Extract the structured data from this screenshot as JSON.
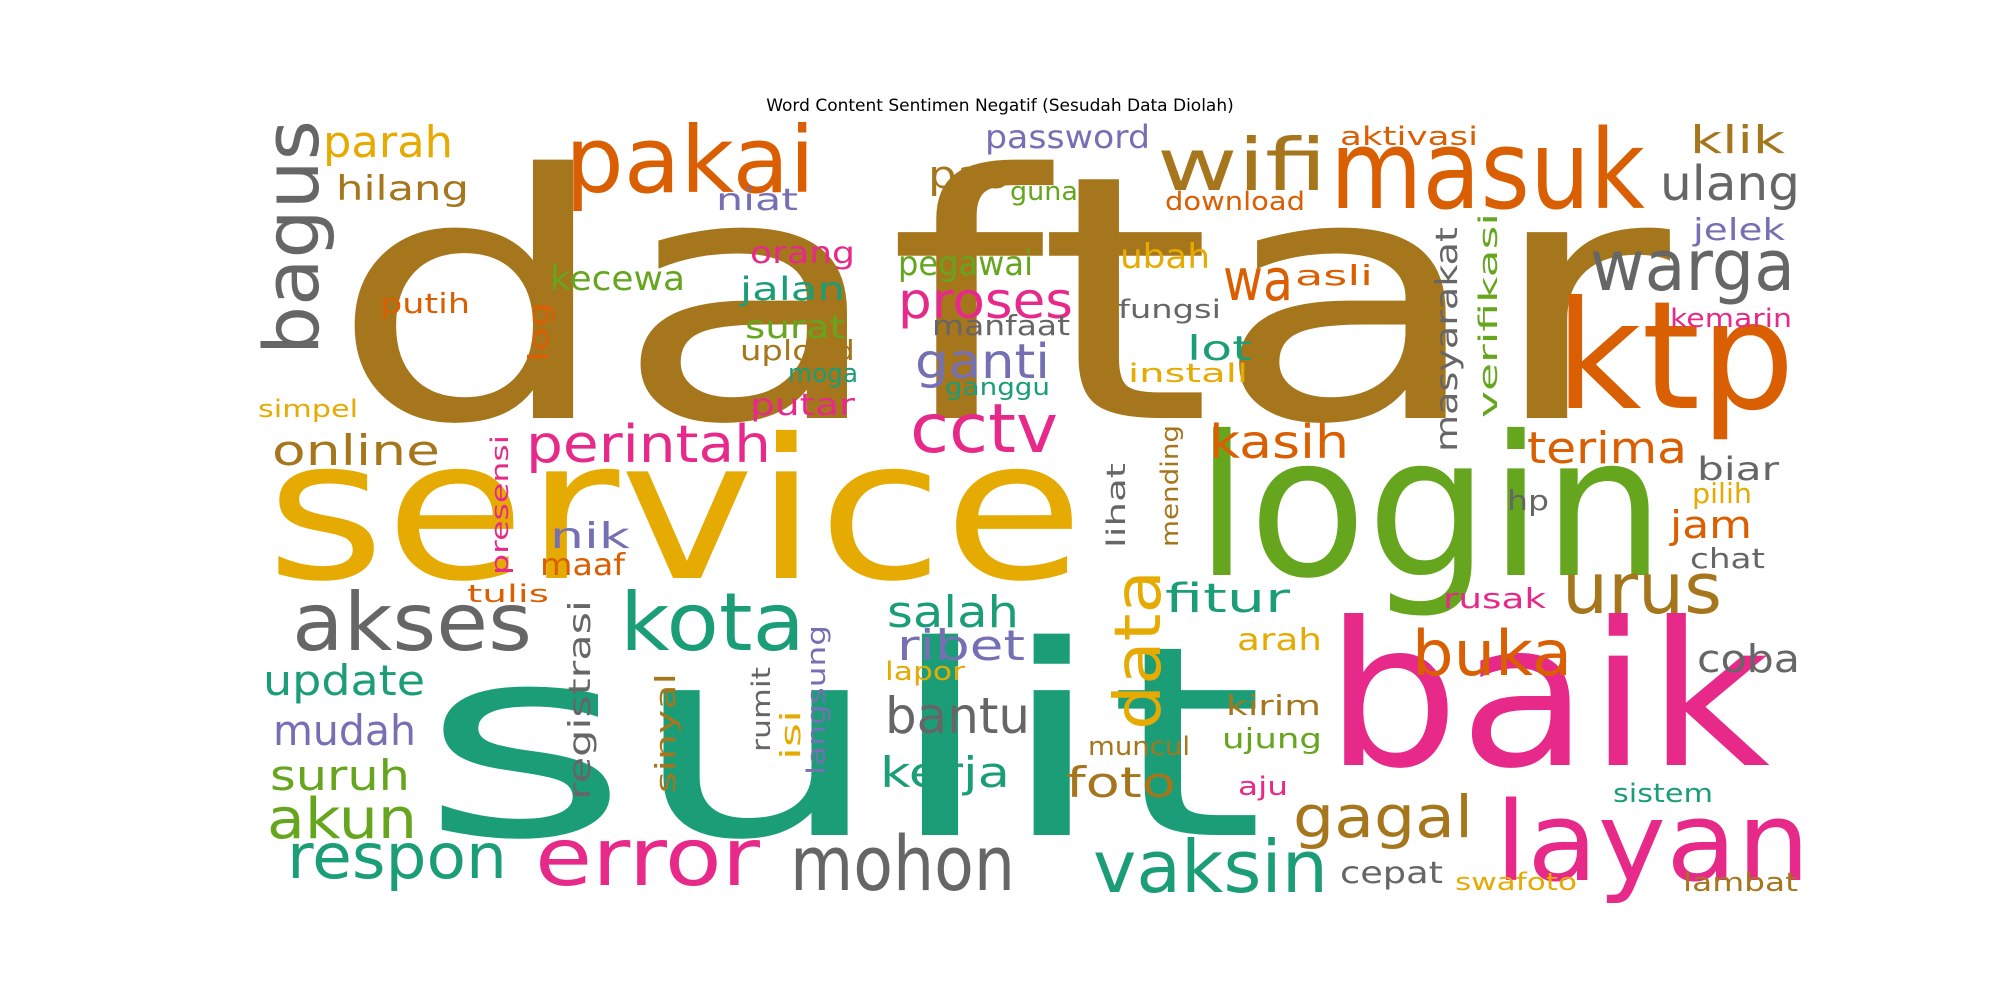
{
  "title": "Word Content Sentimen Negatif (Sesudah Data Diolah)",
  "palette": {
    "brown": "#a6761d",
    "orange": "#d95f02",
    "gold": "#e6ab02",
    "green": "#66a61e",
    "teal": "#1b9e77",
    "pink": "#e7298a",
    "purple": "#7570b3",
    "gray": "#666666"
  },
  "words": [
    {
      "text": "daftar",
      "color": "brown"
    },
    {
      "text": "service",
      "color": "gold"
    },
    {
      "text": "sulit",
      "color": "teal"
    },
    {
      "text": "login",
      "color": "green"
    },
    {
      "text": "baik",
      "color": "pink"
    },
    {
      "text": "ktp",
      "color": "orange"
    },
    {
      "text": "masuk",
      "color": "orange"
    },
    {
      "text": "layan",
      "color": "pink"
    },
    {
      "text": "pakai",
      "color": "orange"
    },
    {
      "text": "kota",
      "color": "teal"
    },
    {
      "text": "akses",
      "color": "gray"
    },
    {
      "text": "bagus",
      "color": "gray"
    },
    {
      "text": "warga",
      "color": "gray"
    },
    {
      "text": "wifi",
      "color": "brown"
    },
    {
      "text": "error",
      "color": "pink"
    },
    {
      "text": "mohon",
      "color": "gray"
    },
    {
      "text": "vaksin",
      "color": "teal"
    },
    {
      "text": "cctv",
      "color": "pink"
    },
    {
      "text": "urus",
      "color": "brown"
    },
    {
      "text": "data",
      "color": "gold"
    },
    {
      "text": "buka",
      "color": "orange"
    },
    {
      "text": "respon",
      "color": "teal"
    },
    {
      "text": "gagal",
      "color": "brown"
    },
    {
      "text": "akun",
      "color": "green"
    },
    {
      "text": "perintah",
      "color": "pink"
    },
    {
      "text": "proses",
      "color": "pink"
    },
    {
      "text": "wa",
      "color": "orange"
    },
    {
      "text": "bantu",
      "color": "gray"
    },
    {
      "text": "ulang",
      "color": "gray"
    },
    {
      "text": "parah",
      "color": "gold"
    },
    {
      "text": "ganti",
      "color": "purple"
    },
    {
      "text": "salah",
      "color": "teal"
    },
    {
      "text": "terima",
      "color": "orange"
    },
    {
      "text": "kasih",
      "color": "orange"
    },
    {
      "text": "online",
      "color": "brown"
    },
    {
      "text": "update",
      "color": "teal"
    },
    {
      "text": "mudah",
      "color": "purple"
    },
    {
      "text": "suruh",
      "color": "green"
    },
    {
      "text": "ribet",
      "color": "purple"
    },
    {
      "text": "kerja",
      "color": "teal"
    },
    {
      "text": "foto",
      "color": "brown"
    },
    {
      "text": "fitur",
      "color": "teal"
    },
    {
      "text": "klik",
      "color": "brown"
    },
    {
      "text": "coba",
      "color": "gray"
    },
    {
      "text": "jam",
      "color": "orange"
    },
    {
      "text": "hilang",
      "color": "brown"
    },
    {
      "text": "pas",
      "color": "brown"
    },
    {
      "text": "password",
      "color": "purple"
    },
    {
      "text": "pegawai",
      "color": "green"
    },
    {
      "text": "kecewa",
      "color": "green"
    },
    {
      "text": "jalan",
      "color": "teal"
    },
    {
      "text": "surat",
      "color": "green"
    },
    {
      "text": "masyarakat",
      "color": "gray"
    },
    {
      "text": "nik",
      "color": "purple"
    },
    {
      "text": "registrasi",
      "color": "gray"
    },
    {
      "text": "lot",
      "color": "teal"
    },
    {
      "text": "ubah",
      "color": "gold"
    },
    {
      "text": "biar",
      "color": "gray"
    },
    {
      "text": "jelek",
      "color": "purple"
    },
    {
      "text": "niat",
      "color": "purple"
    },
    {
      "text": "orang",
      "color": "pink"
    },
    {
      "text": "upload",
      "color": "brown"
    },
    {
      "text": "putar",
      "color": "pink"
    },
    {
      "text": "manfaat",
      "color": "gray"
    },
    {
      "text": "fungsi",
      "color": "gray"
    },
    {
      "text": "asli",
      "color": "orange"
    },
    {
      "text": "maaf",
      "color": "orange"
    },
    {
      "text": "putih",
      "color": "orange"
    },
    {
      "text": "log",
      "color": "orange"
    },
    {
      "text": "arah",
      "color": "gold"
    },
    {
      "text": "rusak",
      "color": "pink"
    },
    {
      "text": "kirim",
      "color": "brown"
    },
    {
      "text": "ujung",
      "color": "green"
    },
    {
      "text": "sinyal",
      "color": "brown"
    },
    {
      "text": "cepat",
      "color": "gray"
    },
    {
      "text": "chat",
      "color": "gray"
    },
    {
      "text": "verifikasi",
      "color": "green"
    },
    {
      "text": "aktivasi",
      "color": "orange"
    },
    {
      "text": "download",
      "color": "orange"
    },
    {
      "text": "hp",
      "color": "gray"
    },
    {
      "text": "pilih",
      "color": "gold"
    },
    {
      "text": "kemarin",
      "color": "pink"
    },
    {
      "text": "lambat",
      "color": "brown"
    },
    {
      "text": "sistem",
      "color": "teal"
    },
    {
      "text": "swafoto",
      "color": "gold"
    },
    {
      "text": "muncul",
      "color": "brown"
    },
    {
      "text": "aju",
      "color": "pink"
    },
    {
      "text": "lapor",
      "color": "gold"
    },
    {
      "text": "langsung",
      "color": "purple"
    },
    {
      "text": "isi",
      "color": "gold"
    },
    {
      "text": "rumit",
      "color": "gray"
    },
    {
      "text": "lihat",
      "color": "gray"
    },
    {
      "text": "mending",
      "color": "brown"
    },
    {
      "text": "presensi",
      "color": "pink"
    },
    {
      "text": "tulis",
      "color": "orange"
    },
    {
      "text": "install",
      "color": "gold"
    },
    {
      "text": "ganggu",
      "color": "teal"
    },
    {
      "text": "moga",
      "color": "teal"
    },
    {
      "text": "guna",
      "color": "green"
    },
    {
      "text": "simpel",
      "color": "gold"
    }
  ]
}
